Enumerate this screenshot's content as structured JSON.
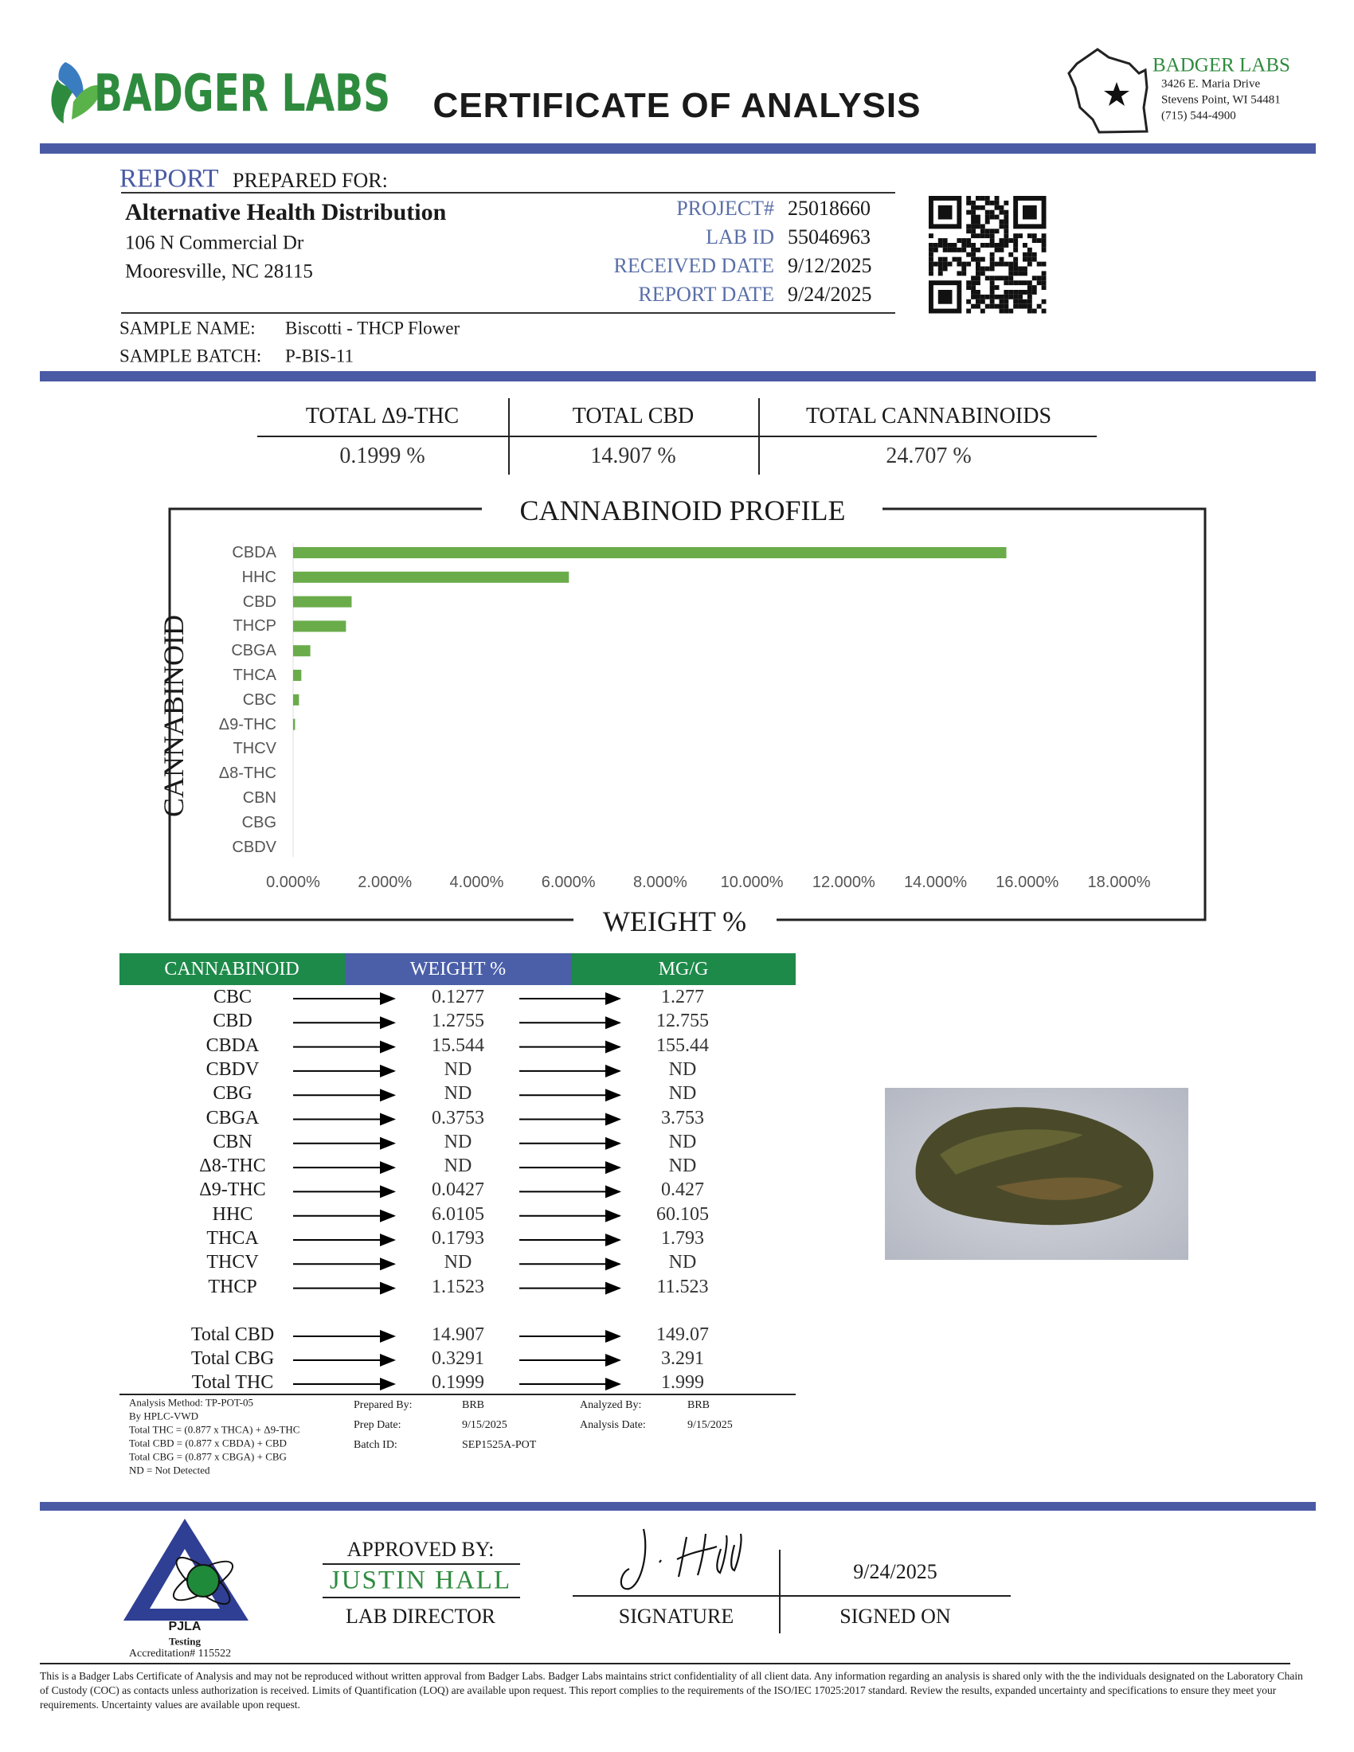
{
  "header": {
    "brand": "BADGER LABS",
    "title": "CERTIFICATE OF ANALYSIS"
  },
  "lab_address": {
    "name": "BADGER LABS",
    "lines": [
      "3426 E. Maria Drive",
      "Stevens Point, WI 54481",
      "(715) 544-4900"
    ]
  },
  "report": {
    "heading": "REPORT",
    "subheading": "PREPARED FOR:",
    "client_name": "Alternative Health Distribution",
    "client_address": [
      "106 N Commercial Dr",
      "Mooresville, NC 28115"
    ],
    "fields": [
      {
        "label": "PROJECT#",
        "value": "25018660"
      },
      {
        "label": "LAB ID",
        "value": "55046963"
      },
      {
        "label": "RECEIVED DATE",
        "value": "9/12/2025"
      },
      {
        "label": "REPORT DATE",
        "value": "9/24/2025"
      }
    ]
  },
  "sample": [
    {
      "label": "SAMPLE NAME:",
      "value": "Biscotti - THCP Flower"
    },
    {
      "label": "SAMPLE BATCH:",
      "value": "P-BIS-11"
    }
  ],
  "totals": [
    {
      "label": "TOTAL Δ9-THC",
      "value": "0.1999 %"
    },
    {
      "label": "TOTAL CBD",
      "value": "14.907 %"
    },
    {
      "label": "TOTAL CANNABINOIDS",
      "value": "24.707 %"
    }
  ],
  "chart_data": {
    "type": "bar",
    "orientation": "horizontal",
    "title": "CANNABINOID PROFILE",
    "x_label": "WEIGHT %",
    "y_label": "CANNABINOID",
    "color": "#6aac4a",
    "categories": [
      "CBDA",
      "HHC",
      "CBD",
      "THCP",
      "CBGA",
      "THCA",
      "CBC",
      "Δ9-THC",
      "THCV",
      "Δ8-THC",
      "CBN",
      "CBG",
      "CBDV"
    ],
    "values": [
      15.544,
      6.0105,
      1.2755,
      1.1523,
      0.3753,
      0.1793,
      0.1277,
      0.0427,
      0,
      0,
      0,
      0,
      0
    ],
    "xlim": [
      0,
      18
    ],
    "xticks": [
      {
        "value": 0,
        "label": "0.000%"
      },
      {
        "value": 2,
        "label": "2.000%"
      },
      {
        "value": 4,
        "label": "4.000%"
      },
      {
        "value": 6,
        "label": "6.000%"
      },
      {
        "value": 8,
        "label": "8.000%"
      },
      {
        "value": 10,
        "label": "10.000%"
      },
      {
        "value": 12,
        "label": "12.000%"
      },
      {
        "value": 14,
        "label": "14.000%"
      },
      {
        "value": 16,
        "label": "16.000%"
      },
      {
        "value": 18,
        "label": "18.000%"
      }
    ],
    "grid": false
  },
  "table": {
    "headers": [
      "CANNABINOID",
      "WEIGHT %",
      "MG/G"
    ],
    "rows": [
      [
        "CBC",
        "0.1277",
        "1.277"
      ],
      [
        "CBD",
        "1.2755",
        "12.755"
      ],
      [
        "CBDA",
        "15.544",
        "155.44"
      ],
      [
        "CBDV",
        "ND",
        "ND"
      ],
      [
        "CBG",
        "ND",
        "ND"
      ],
      [
        "CBGA",
        "0.3753",
        "3.753"
      ],
      [
        "CBN",
        "ND",
        "ND"
      ],
      [
        "Δ8-THC",
        "ND",
        "ND"
      ],
      [
        "Δ9-THC",
        "0.0427",
        "0.427"
      ],
      [
        "HHC",
        "6.0105",
        "60.105"
      ],
      [
        "THCA",
        "0.1793",
        "1.793"
      ],
      [
        "THCV",
        "ND",
        "ND"
      ],
      [
        "THCP",
        "1.1523",
        "11.523"
      ]
    ],
    "total_rows": [
      [
        "Total CBD",
        "14.907",
        "149.07"
      ],
      [
        "Total CBG",
        "0.3291",
        "3.291"
      ],
      [
        "Total THC",
        "0.1999",
        "1.999"
      ]
    ]
  },
  "notes": {
    "method": [
      "Analysis Method: TP-POT-05",
      "By HPLC-VWD",
      "Total THC = (0.877 x  THCA) + Δ9-THC",
      "Total CBD = (0.877 x  CBDA) + CBD",
      "Total CBG = (0.877 x  CBGA) + CBG",
      "ND = Not Detected"
    ],
    "prep": [
      {
        "label": "Prepared By:",
        "value": "BRB"
      },
      {
        "label": "Prep Date:",
        "value": "9/15/2025"
      },
      {
        "label": "Batch ID:",
        "value": "SEP1525A-POT"
      }
    ],
    "analysis": [
      {
        "label": "Analyzed By:",
        "value": "BRB"
      },
      {
        "label": "Analysis Date:",
        "value": "9/15/2025"
      }
    ]
  },
  "footer": {
    "accreditation": {
      "org": "PJLA",
      "type": "Testing",
      "number": "Accreditation# 115522"
    },
    "approved_by": "APPROVED BY:",
    "approver": "JUSTIN HALL",
    "role": "LAB DIRECTOR",
    "signature_label": "SIGNATURE",
    "signed_date": "9/24/2025",
    "signed_on_label": "SIGNED ON",
    "disclaimer": "This is a Badger Labs Certificate of Analysis and may not be reproduced without written approval from Badger Labs. Badger Labs maintains strict confidentiality of all client data. Any information regarding an analysis is shared only with the the individuals designated on the Laboratory Chain of Custody (COC) as contacts unless authorization is received. Limits of Quantification (LOQ) are available upon request. This report complies to the requirements of the ISO/IEC 17025:2017 standard. Review the results, expanded uncertainty and specifications to ensure they meet your requirements. Uncertainty values are available upon request."
  }
}
